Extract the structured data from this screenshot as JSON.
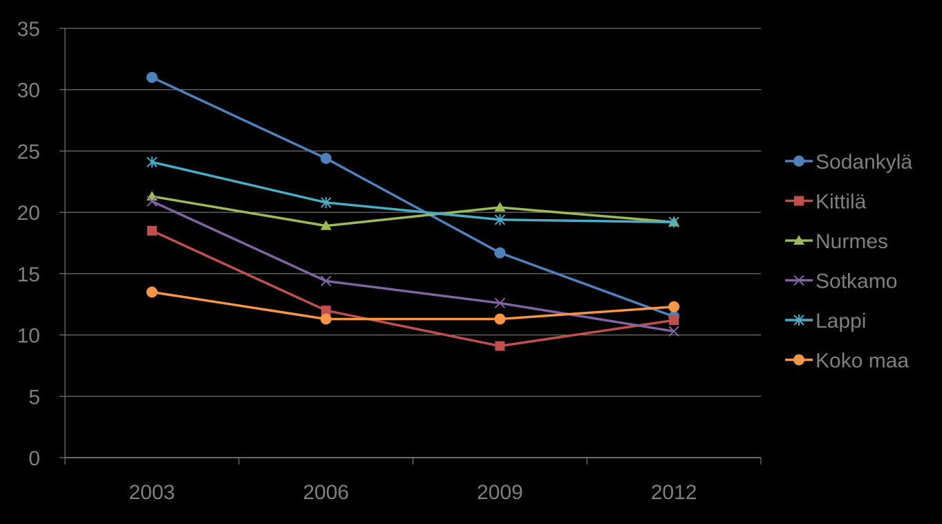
{
  "chart_data": {
    "type": "line",
    "title": "",
    "xlabel": "",
    "ylabel": "",
    "categories": [
      "2003",
      "2006",
      "2009",
      "2012"
    ],
    "ylim": [
      0,
      35
    ],
    "yticks": [
      "0",
      "5",
      "10",
      "15",
      "20",
      "25",
      "30",
      "35"
    ],
    "grid": true,
    "legend_position": "right",
    "series": [
      {
        "name": "Sodankylä",
        "values": [
          31.0,
          24.4,
          16.7,
          11.5
        ],
        "color": "#4f81bd",
        "marker": "circle"
      },
      {
        "name": "Kittilä",
        "values": [
          18.5,
          12.0,
          9.1,
          11.2
        ],
        "color": "#c0504d",
        "marker": "square"
      },
      {
        "name": "Nurmes",
        "values": [
          21.3,
          18.9,
          20.4,
          19.2
        ],
        "color": "#9bbb59",
        "marker": "triangle"
      },
      {
        "name": "Sotkamo",
        "values": [
          20.9,
          14.4,
          12.6,
          10.3
        ],
        "color": "#8064a2",
        "marker": "x"
      },
      {
        "name": "Lappi",
        "values": [
          24.1,
          20.8,
          19.4,
          19.2
        ],
        "color": "#4bacc6",
        "marker": "star"
      },
      {
        "name": "Koko maa",
        "values": [
          13.5,
          11.3,
          11.3,
          12.3
        ],
        "color": "#f79646",
        "marker": "circle"
      }
    ]
  }
}
